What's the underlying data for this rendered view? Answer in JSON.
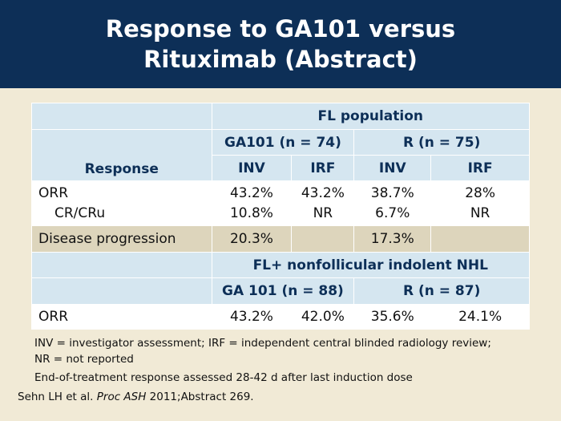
{
  "title": {
    "line1": "Response to GA101 versus",
    "line2": "Rituximab (Abstract)"
  },
  "table": {
    "population_header": "FL population",
    "group1_header": "GA101 (n = 74)",
    "group2_header": "R (n = 75)",
    "response_label": "Response",
    "col_inv": "INV",
    "col_irf": "IRF",
    "rows": {
      "orr": {
        "label": "ORR",
        "g1_inv": "43.2%",
        "g1_irf": "43.2%",
        "g2_inv": "38.7%",
        "g2_irf": "28%"
      },
      "crcru": {
        "label": "CR/CRu",
        "g1_inv": "10.8%",
        "g1_irf": "NR",
        "g2_inv": "6.7%",
        "g2_irf": "NR"
      },
      "progression": {
        "label": "Disease progression",
        "g1_inv": "20.3%",
        "g1_irf": "",
        "g2_inv": "17.3%",
        "g2_irf": ""
      }
    },
    "population2_header": "FL+ nonfollicular indolent NHL",
    "group3_header": "GA 101 (n = 88)",
    "group4_header": "R (n = 87)",
    "orr2": {
      "label": "ORR",
      "g3_inv": "43.2%",
      "g3_irf": "42.0%",
      "g4_inv": "35.6%",
      "g4_irf": "24.1%"
    }
  },
  "notes": {
    "line1": "INV = investigator assessment; IRF = independent central blinded radiology review;",
    "line2": "NR = not reported",
    "line3": "End-of-treatment response assessed 28-42 d after last induction dose"
  },
  "citation": {
    "prefix": "Sehn LH et al. ",
    "journal": "Proc ASH",
    "suffix": " 2011;Abstract 269."
  },
  "colors": {
    "header_bar": "#0d2f57",
    "background": "#f1ead6",
    "header_cell": "#d5e6f0",
    "row_tan": "#ddd5bc",
    "header_text": "#0d2f57"
  }
}
